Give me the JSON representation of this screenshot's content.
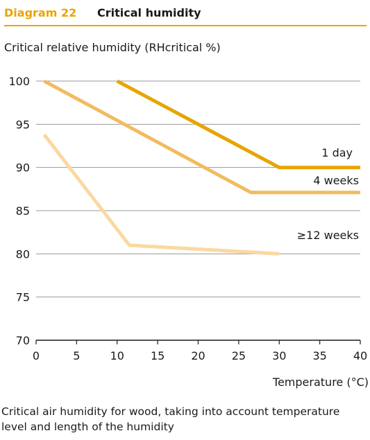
{
  "header": {
    "diagram_label": "Diagram 22",
    "title": "Critical humidity"
  },
  "caption": "Critical air humidity for wood, taking into account temperature level and length of the humidity",
  "chart_data": {
    "type": "line",
    "title": "Critical humidity",
    "ylabel": "Critical relative humidity (RHcritical %)",
    "xlabel": "Temperature (°C)",
    "xlim": [
      0,
      40
    ],
    "ylim": [
      70,
      100
    ],
    "xticks": [
      0,
      5,
      10,
      15,
      20,
      25,
      30,
      35,
      40
    ],
    "yticks": [
      70,
      75,
      80,
      85,
      90,
      95,
      100
    ],
    "grid": "horizontal",
    "series": [
      {
        "name": "1 day",
        "color": "#e8a400",
        "points": [
          [
            10,
            100
          ],
          [
            30,
            90
          ],
          [
            40,
            90
          ]
        ]
      },
      {
        "name": "4 weeks",
        "color": "#f2bb60",
        "points": [
          [
            1,
            100
          ],
          [
            26.5,
            87.1
          ],
          [
            40,
            87.1
          ]
        ]
      },
      {
        "name": "≥12 weeks",
        "color": "#fad9a0",
        "points": [
          [
            1,
            93.8
          ],
          [
            11.5,
            81
          ],
          [
            30,
            80
          ]
        ]
      }
    ]
  }
}
